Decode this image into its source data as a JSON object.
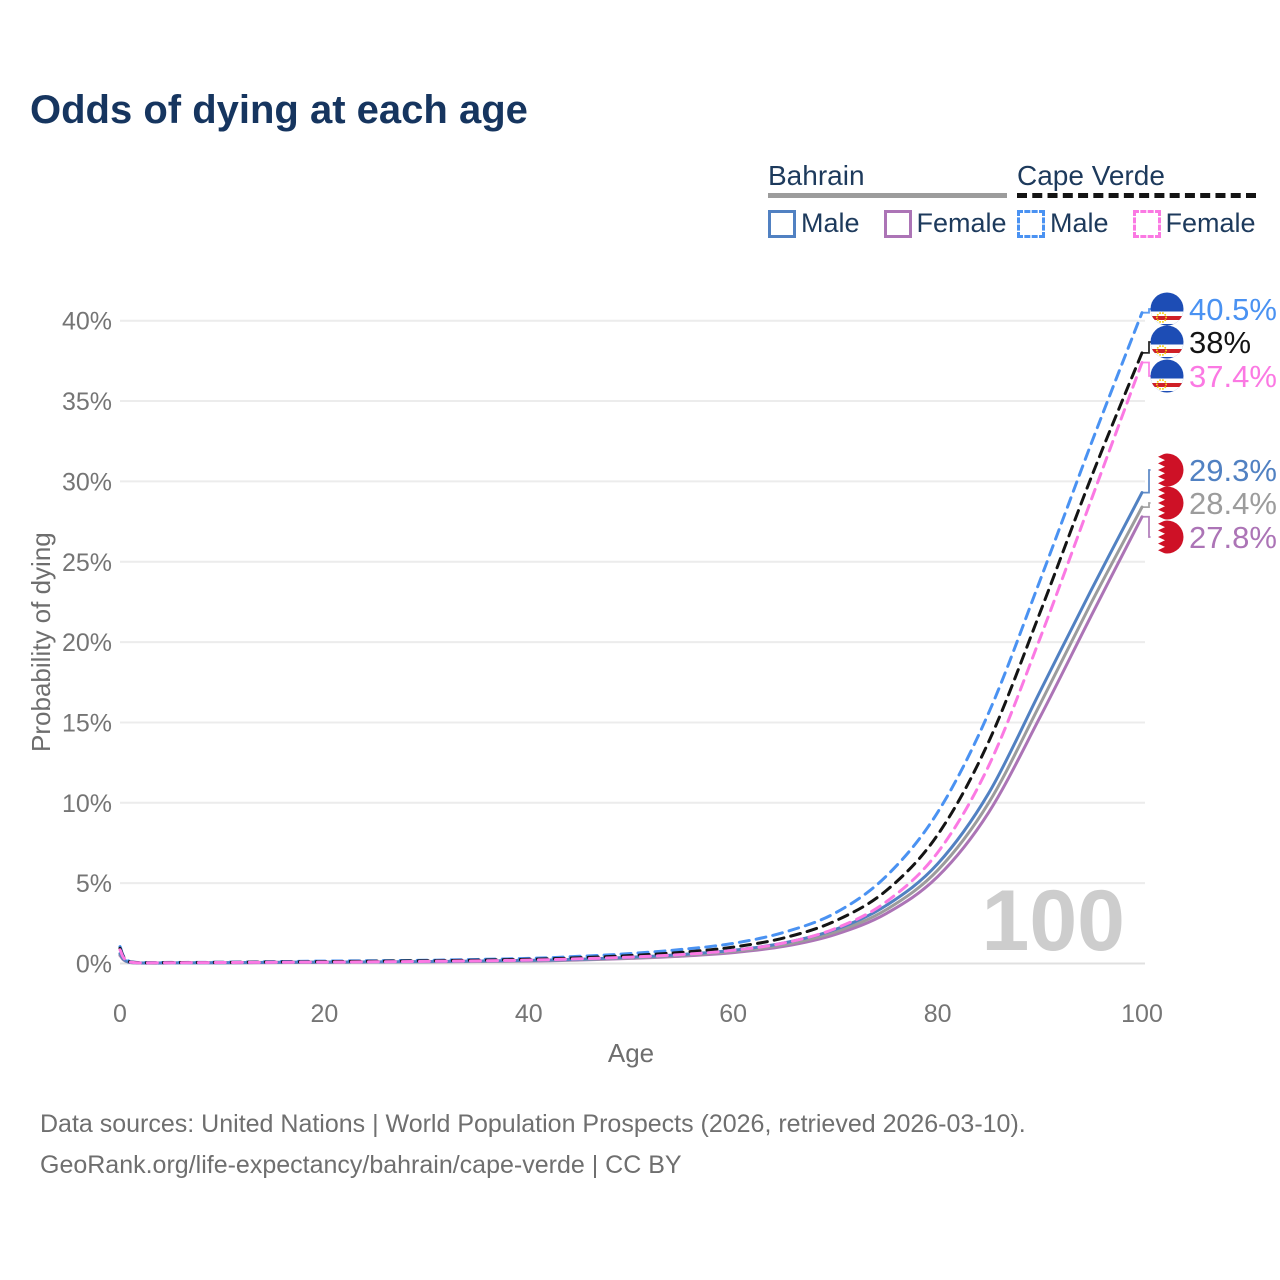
{
  "title": "Odds of dying at each age",
  "colors": {
    "bahrain_male": "#5181c2",
    "bahrain_total": "#9c9c9c",
    "bahrain_female": "#ac74b6",
    "cape_verde_male": "#4a92f2",
    "cape_verde_total": "#141414",
    "cape_verde_female": "#fb79e3",
    "title_text": "#16355f",
    "axis_text": "#757575",
    "grid": "#ececec",
    "watermark": "#cdcdcd",
    "bahrain_flag_red": "#ce1126",
    "cape_verde_flag_blue": "#1d4db5",
    "cape_verde_flag_red": "#cf2027",
    "cape_verde_flag_star": "#f7d116"
  },
  "legend": {
    "groups": [
      {
        "name": "Bahrain",
        "style": "solid",
        "items": [
          {
            "label": "Male",
            "key": "bahrain_male"
          },
          {
            "label": "Female",
            "key": "bahrain_female"
          }
        ]
      },
      {
        "name": "Cape Verde",
        "style": "dashed",
        "items": [
          {
            "label": "Male",
            "key": "cape_verde_male"
          },
          {
            "label": "Female",
            "key": "cape_verde_female"
          }
        ]
      }
    ]
  },
  "chart_data": {
    "type": "line",
    "title": "Odds of dying at each age",
    "xlabel": "Age",
    "ylabel": "Probability of dying",
    "xlim": [
      0,
      100
    ],
    "ylim": [
      0,
      40.5
    ],
    "xticks": [
      0,
      20,
      40,
      60,
      80,
      100
    ],
    "ytick_values": [
      0,
      5,
      10,
      15,
      20,
      25,
      30,
      35,
      40
    ],
    "ytick_labels": [
      "0%",
      "5%",
      "10%",
      "15%",
      "20%",
      "25%",
      "30%",
      "35%",
      "40%"
    ],
    "grid": "horizontal-only",
    "legend_position": "top-right",
    "watermark": "100",
    "x": [
      0,
      1,
      5,
      10,
      20,
      30,
      40,
      45,
      50,
      55,
      60,
      65,
      70,
      75,
      80,
      85,
      90,
      95,
      100
    ],
    "series": [
      {
        "name": "Bahrain Female",
        "key": "bahrain_female",
        "dashed": false,
        "flag": "bahrain",
        "end_label": "27.8%",
        "values": [
          0.5,
          0.06,
          0.03,
          0.04,
          0.07,
          0.1,
          0.15,
          0.22,
          0.32,
          0.46,
          0.68,
          1.07,
          1.81,
          3.12,
          5.4,
          9.4,
          15.3,
          21.6,
          27.8
        ]
      },
      {
        "name": "Bahrain Total",
        "key": "bahrain_total",
        "dashed": false,
        "flag": "bahrain",
        "end_label": "28.4%",
        "values": [
          0.56,
          0.06,
          0.04,
          0.05,
          0.08,
          0.11,
          0.17,
          0.24,
          0.35,
          0.51,
          0.75,
          1.17,
          1.96,
          3.36,
          5.8,
          10.0,
          16.1,
          22.4,
          28.4
        ]
      },
      {
        "name": "Bahrain Male",
        "key": "bahrain_male",
        "dashed": false,
        "flag": "bahrain",
        "end_label": "29.3%",
        "values": [
          0.62,
          0.07,
          0.04,
          0.05,
          0.09,
          0.12,
          0.19,
          0.27,
          0.39,
          0.56,
          0.82,
          1.28,
          2.12,
          3.62,
          6.2,
          10.6,
          16.9,
          23.2,
          29.3
        ]
      },
      {
        "name": "Cape Verde Male",
        "key": "cape_verde_male",
        "dashed": true,
        "flag": "cape-verde",
        "end_label": "40.5%",
        "values": [
          1.05,
          0.12,
          0.07,
          0.08,
          0.15,
          0.2,
          0.32,
          0.45,
          0.62,
          0.88,
          1.25,
          1.95,
          3.15,
          5.45,
          9.4,
          15.6,
          23.8,
          32.3,
          40.5
        ]
      },
      {
        "name": "Cape Verde Total",
        "key": "cape_verde_total",
        "dashed": true,
        "flag": "cape-verde",
        "end_label": "38%",
        "values": [
          0.95,
          0.1,
          0.06,
          0.07,
          0.12,
          0.17,
          0.26,
          0.36,
          0.5,
          0.7,
          1.02,
          1.6,
          2.65,
          4.55,
          8.0,
          13.8,
          21.8,
          30.2,
          38.0
        ]
      },
      {
        "name": "Cape Verde Female",
        "key": "cape_verde_female",
        "dashed": true,
        "flag": "cape-verde",
        "end_label": "37.4%",
        "values": [
          0.85,
          0.09,
          0.05,
          0.06,
          0.09,
          0.13,
          0.21,
          0.29,
          0.4,
          0.56,
          0.82,
          1.28,
          2.18,
          3.85,
          6.9,
          12.3,
          20.2,
          28.8,
          37.4
        ]
      }
    ],
    "end_label_order_top_to_bottom": [
      "40.5%",
      "38%",
      "37.4%",
      "29.3%",
      "28.4%",
      "27.8%"
    ]
  },
  "footer": {
    "line1": "Data sources: United Nations | World Population Prospects (2026, retrieved 2026-03-10).",
    "line2": "GeoRank.org/life-expectancy/bahrain/cape-verde | CC BY"
  }
}
